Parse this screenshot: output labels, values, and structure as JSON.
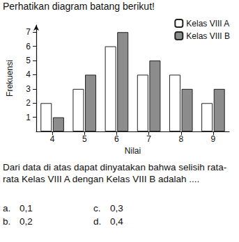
{
  "header": "Perhatikan diagram batang berikut!",
  "chart_data": {
    "type": "bar",
    "categories": [
      "4",
      "5",
      "6",
      "7",
      "8",
      "9"
    ],
    "series": [
      {
        "name": "Kelas VIII A",
        "color": "#ffffff",
        "values": [
          2,
          3,
          6,
          4,
          4,
          2
        ]
      },
      {
        "name": "Kelas VIII B",
        "color": "#8c8c8c",
        "values": [
          1,
          4,
          7,
          5,
          3,
          3
        ]
      }
    ],
    "x_label": "Nilai",
    "y_label": "Frekuensi",
    "ylim": [
      0,
      7.5
    ],
    "yticks": [
      1,
      2,
      3,
      4,
      5,
      6,
      7
    ],
    "grid": false,
    "legend": "top-right"
  },
  "question": "Dari data di atas dapat dinyatakan bahwa selisih rata-rata Kelas VIII A dengan Kelas VIII B adalah ....",
  "options": [
    {
      "label": "a.",
      "text": "0,1"
    },
    {
      "label": "b.",
      "text": "0,2"
    },
    {
      "label": "c.",
      "text": "0,3"
    },
    {
      "label": "d.",
      "text": "0,4"
    }
  ]
}
